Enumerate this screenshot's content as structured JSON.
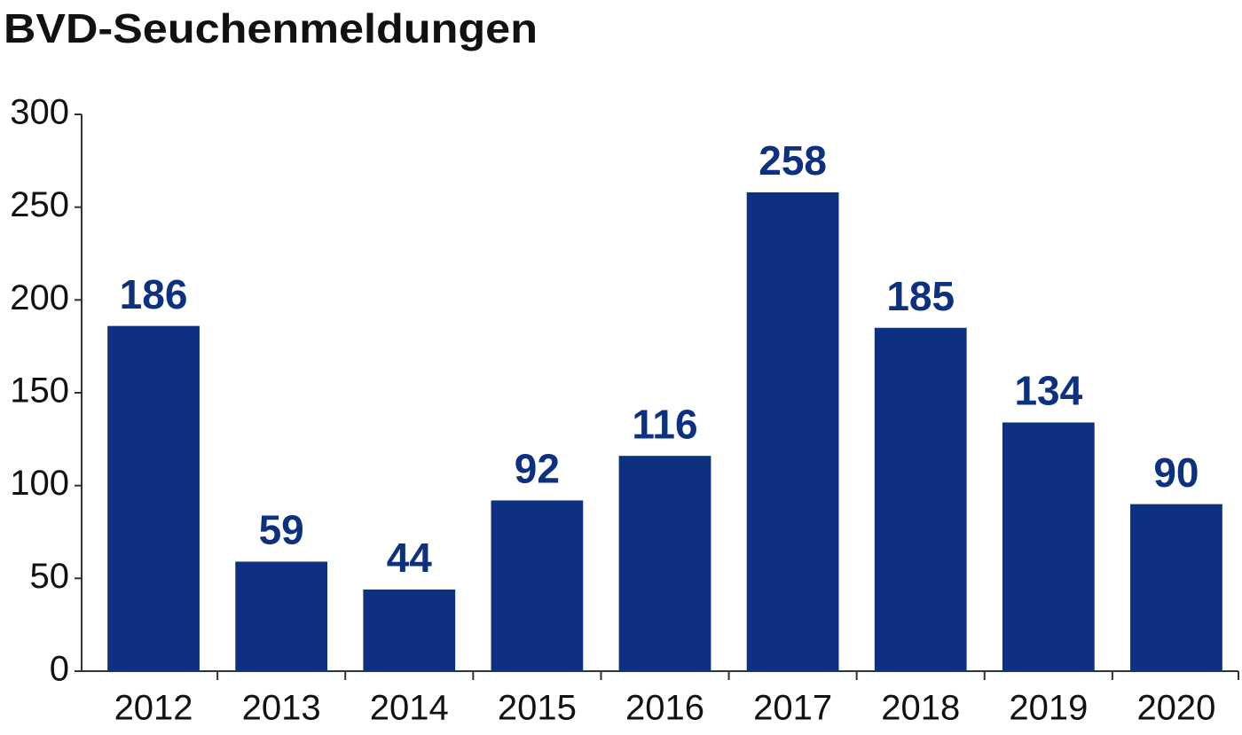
{
  "chart_data": {
    "type": "bar",
    "title": "BVD-Seuchenmeldungen",
    "categories": [
      "2012",
      "2013",
      "2014",
      "2015",
      "2016",
      "2017",
      "2018",
      "2019",
      "2020"
    ],
    "values": [
      186,
      59,
      44,
      92,
      116,
      258,
      185,
      134,
      90
    ],
    "color": "#0d3080",
    "ylim": [
      0,
      300
    ],
    "yticks": [
      0,
      50,
      100,
      150,
      200,
      250,
      300
    ],
    "grid": false
  }
}
